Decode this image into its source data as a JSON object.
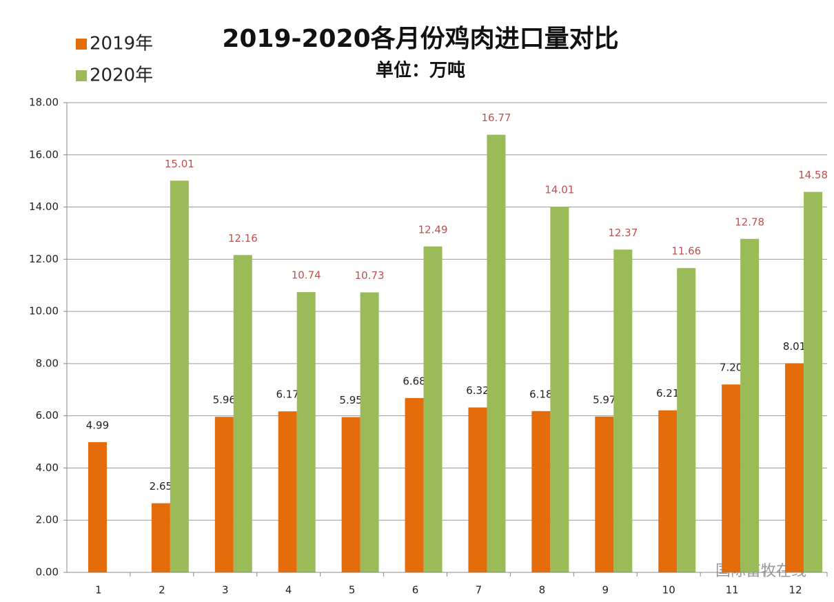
{
  "chart_data": {
    "type": "bar",
    "title": "2019-2020各月份鸡肉进口量对比",
    "subtitle": "单位：万吨",
    "watermark": "国际畜牧在线",
    "categories": [
      "1",
      "2",
      "3",
      "4",
      "5",
      "6",
      "7",
      "8",
      "9",
      "10",
      "11",
      "12"
    ],
    "series": [
      {
        "name": "2019年",
        "color": "#e46c0a",
        "label_color": "#222222",
        "values": [
          4.99,
          2.65,
          5.96,
          6.17,
          5.95,
          6.68,
          6.32,
          6.18,
          5.97,
          6.21,
          7.2,
          8.01
        ],
        "value_labels": [
          "4.99",
          "2.65",
          "5.96",
          "6.17",
          "5.95",
          "6.68",
          "6.32",
          "6.18",
          "5.97",
          "6.21",
          "7.20",
          "8.01"
        ]
      },
      {
        "name": "2020年",
        "color": "#9bbb59",
        "label_color": "#c0504d",
        "values": [
          null,
          15.01,
          12.16,
          10.74,
          10.73,
          12.49,
          16.77,
          14.01,
          12.37,
          11.66,
          12.78,
          14.58
        ],
        "value_labels": [
          null,
          "15.01",
          "12.16",
          "10.74",
          "10.73",
          "12.49",
          "16.77",
          "14.01",
          "12.37",
          "11.66",
          "12.78",
          "14.58"
        ]
      }
    ],
    "ylim": [
      0,
      18
    ],
    "yticks": [
      {
        "value": 0,
        "label": "0.00"
      },
      {
        "value": 2,
        "label": "2.00"
      },
      {
        "value": 4,
        "label": "4.00"
      },
      {
        "value": 6,
        "label": "6.00"
      },
      {
        "value": 8,
        "label": "8.00"
      },
      {
        "value": 10,
        "label": "10.00"
      },
      {
        "value": 12,
        "label": "12.00"
      },
      {
        "value": 14,
        "label": "14.00"
      },
      {
        "value": 16,
        "label": "16.00"
      },
      {
        "value": 18,
        "label": "18.00"
      }
    ],
    "grid": true,
    "legend": "top-left"
  }
}
